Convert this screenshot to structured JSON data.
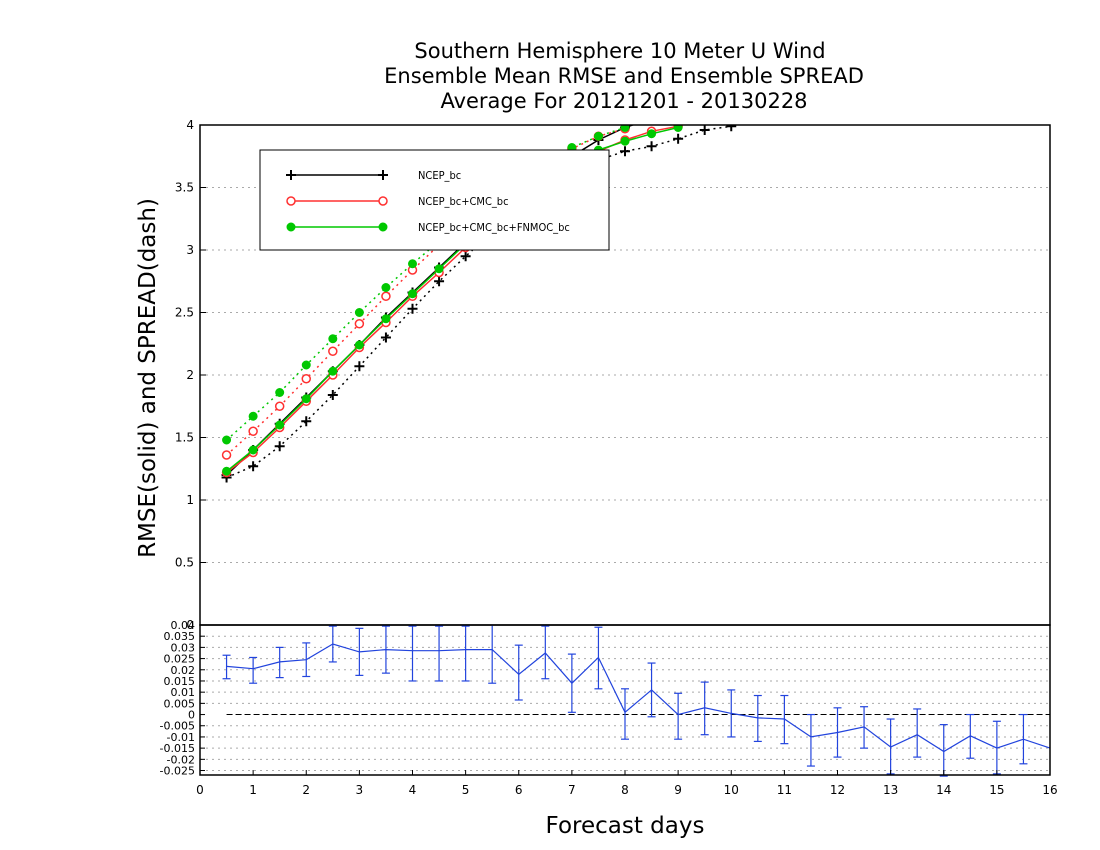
{
  "title_lines": [
    "Southern Hemisphere 10 Meter U Wind",
    "Ensemble Mean RMSE and Ensemble SPREAD",
    "Average For 20121201 - 20130228"
  ],
  "chart_data": [
    {
      "type": "line",
      "panel": "main",
      "ylabel": "RMSE(solid) and SPREAD(dash)",
      "ylim": [
        0,
        4
      ],
      "xlim": [
        0,
        16
      ],
      "yticks": [
        0,
        0.5,
        1,
        1.5,
        2,
        2.5,
        3,
        3.5,
        4
      ],
      "ytick_labels": [
        "0",
        "0.5",
        "1",
        "1.5",
        "2",
        "2.5",
        "3",
        "3.5",
        "4"
      ],
      "grid": true,
      "legend_position": "top-left",
      "series": [
        {
          "name": "NCEP_bc",
          "color": "#000000",
          "marker": "plus",
          "rmse": [
            [
              0.5,
              1.2
            ],
            [
              1,
              1.4
            ],
            [
              1.5,
              1.61
            ],
            [
              2,
              1.82
            ],
            [
              2.5,
              2.03
            ],
            [
              3,
              2.24
            ],
            [
              3.5,
              2.46
            ],
            [
              4,
              2.66
            ],
            [
              4.5,
              2.86
            ],
            [
              5,
              3.06
            ],
            [
              5.5,
              3.25
            ],
            [
              6,
              3.43
            ],
            [
              6.5,
              3.6
            ],
            [
              7,
              3.75
            ],
            [
              7.5,
              3.88
            ],
            [
              8,
              3.98
            ],
            [
              8.5,
              4.05
            ]
          ],
          "spread": [
            [
              0.5,
              1.18
            ],
            [
              1,
              1.27
            ],
            [
              1.5,
              1.43
            ],
            [
              2,
              1.63
            ],
            [
              2.5,
              1.84
            ],
            [
              3,
              2.07
            ],
            [
              3.5,
              2.3
            ],
            [
              4,
              2.53
            ],
            [
              4.5,
              2.75
            ],
            [
              5,
              2.95
            ],
            [
              5.5,
              3.14
            ],
            [
              6,
              3.31
            ],
            [
              6.5,
              3.47
            ],
            [
              7,
              3.6
            ],
            [
              7.5,
              3.72
            ],
            [
              8,
              3.79
            ],
            [
              8.5,
              3.83
            ],
            [
              9,
              3.89
            ],
            [
              9.5,
              3.96
            ],
            [
              10,
              3.99
            ]
          ]
        },
        {
          "name": "NCEP_bc+CMC_bc",
          "color": "#ff3030",
          "marker": "open-circle",
          "rmse": [
            [
              0.5,
              1.22
            ],
            [
              1,
              1.38
            ],
            [
              1.5,
              1.58
            ],
            [
              2,
              1.79
            ],
            [
              2.5,
              2.0
            ],
            [
              3,
              2.22
            ],
            [
              3.5,
              2.42
            ],
            [
              4,
              2.63
            ],
            [
              4.5,
              2.82
            ],
            [
              5,
              3.02
            ],
            [
              5.5,
              3.2
            ],
            [
              6,
              3.37
            ],
            [
              6.5,
              3.53
            ],
            [
              7,
              3.67
            ],
            [
              7.5,
              3.79
            ],
            [
              8,
              3.88
            ],
            [
              8.5,
              3.95
            ],
            [
              9,
              3.99
            ]
          ],
          "spread": [
            [
              0.5,
              1.36
            ],
            [
              1,
              1.55
            ],
            [
              1.5,
              1.75
            ],
            [
              2,
              1.97
            ],
            [
              2.5,
              2.19
            ],
            [
              3,
              2.41
            ],
            [
              3.5,
              2.63
            ],
            [
              4,
              2.84
            ],
            [
              4.5,
              3.04
            ],
            [
              5,
              3.23
            ],
            [
              5.5,
              3.41
            ],
            [
              6,
              3.57
            ],
            [
              6.5,
              3.71
            ],
            [
              7,
              3.81
            ],
            [
              7.5,
              3.91
            ],
            [
              8,
              3.97
            ]
          ]
        },
        {
          "name": "NCEP_bc+CMC_bc+FNMOC_bc",
          "color": "#00c800",
          "marker": "filled-circle",
          "rmse": [
            [
              0.5,
              1.23
            ],
            [
              1,
              1.4
            ],
            [
              1.5,
              1.6
            ],
            [
              2,
              1.81
            ],
            [
              2.5,
              2.03
            ],
            [
              3,
              2.24
            ],
            [
              3.5,
              2.45
            ],
            [
              4,
              2.65
            ],
            [
              4.5,
              2.85
            ],
            [
              5,
              3.05
            ],
            [
              5.5,
              3.23
            ],
            [
              6,
              3.4
            ],
            [
              6.5,
              3.55
            ],
            [
              7,
              3.69
            ],
            [
              7.5,
              3.8
            ],
            [
              8,
              3.87
            ],
            [
              8.5,
              3.93
            ],
            [
              9,
              3.98
            ]
          ],
          "spread": [
            [
              0.5,
              1.48
            ],
            [
              1,
              1.67
            ],
            [
              1.5,
              1.86
            ],
            [
              2,
              2.08
            ],
            [
              2.5,
              2.29
            ],
            [
              3,
              2.5
            ],
            [
              3.5,
              2.7
            ],
            [
              4,
              2.89
            ],
            [
              4.5,
              3.07
            ],
            [
              5,
              3.25
            ],
            [
              5.5,
              3.42
            ],
            [
              6,
              3.58
            ],
            [
              6.5,
              3.71
            ],
            [
              7,
              3.82
            ],
            [
              7.5,
              3.91
            ],
            [
              8,
              3.98
            ]
          ]
        }
      ]
    },
    {
      "type": "line",
      "panel": "difference",
      "xlabel": "Forecast days",
      "xlim": [
        0,
        16
      ],
      "ylim": [
        -0.027,
        0.04
      ],
      "xticks": [
        0,
        1,
        2,
        3,
        4,
        5,
        6,
        7,
        8,
        9,
        10,
        11,
        12,
        13,
        14,
        15,
        16
      ],
      "xtick_labels": [
        "0",
        "1",
        "2",
        "3",
        "4",
        "5",
        "6",
        "7",
        "8",
        "9",
        "10",
        "11",
        "12",
        "13",
        "14",
        "15",
        "16"
      ],
      "yticks": [
        0.04,
        0.035,
        0.03,
        0.025,
        0.02,
        0.015,
        0.01,
        0.005,
        0,
        -0.005,
        -0.01,
        -0.015,
        -0.02,
        -0.025
      ],
      "ytick_labels": [
        "0.04",
        "0.035",
        "0.03",
        "0.025",
        "0.02",
        "0.015",
        "0.01",
        "0.005",
        "0",
        "-0.005",
        "-0.01",
        "-0.015",
        "-0.02",
        "-0.025"
      ],
      "grid": true,
      "color": "#2244dd",
      "reference_line": 0,
      "points": [
        {
          "x": 0.5,
          "y": 0.0215,
          "lo": 0.016,
          "hi": 0.0265
        },
        {
          "x": 1,
          "y": 0.0205,
          "lo": 0.014,
          "hi": 0.0255
        },
        {
          "x": 1.5,
          "y": 0.0235,
          "lo": 0.0165,
          "hi": 0.03
        },
        {
          "x": 2,
          "y": 0.0245,
          "lo": 0.017,
          "hi": 0.032
        },
        {
          "x": 2.5,
          "y": 0.0315,
          "lo": 0.0235,
          "hi": 0.0395
        },
        {
          "x": 3,
          "y": 0.028,
          "lo": 0.0175,
          "hi": 0.0385
        },
        {
          "x": 3.5,
          "y": 0.029,
          "lo": 0.0185,
          "hi": 0.0395
        },
        {
          "x": 4,
          "y": 0.0285,
          "lo": 0.015,
          "hi": 0.0395
        },
        {
          "x": 4.5,
          "y": 0.0285,
          "lo": 0.015,
          "hi": 0.0395
        },
        {
          "x": 5,
          "y": 0.029,
          "lo": 0.015,
          "hi": 0.0395
        },
        {
          "x": 5.5,
          "y": 0.029,
          "lo": 0.014,
          "hi": 0.042
        },
        {
          "x": 6,
          "y": 0.018,
          "lo": 0.0065,
          "hi": 0.031
        },
        {
          "x": 6.5,
          "y": 0.0275,
          "lo": 0.016,
          "hi": 0.0395
        },
        {
          "x": 7,
          "y": 0.014,
          "lo": 0.001,
          "hi": 0.027
        },
        {
          "x": 7.5,
          "y": 0.0255,
          "lo": 0.0115,
          "hi": 0.039
        },
        {
          "x": 8,
          "y": 0.001,
          "lo": -0.011,
          "hi": 0.0115
        },
        {
          "x": 8.5,
          "y": 0.011,
          "lo": -0.001,
          "hi": 0.023
        },
        {
          "x": 9,
          "y": 0.0,
          "lo": -0.011,
          "hi": 0.0095
        },
        {
          "x": 9.5,
          "y": 0.003,
          "lo": -0.009,
          "hi": 0.0145
        },
        {
          "x": 10,
          "y": 0.0005,
          "lo": -0.01,
          "hi": 0.011
        },
        {
          "x": 10.5,
          "y": -0.0015,
          "lo": -0.012,
          "hi": 0.0085
        },
        {
          "x": 11,
          "y": -0.002,
          "lo": -0.013,
          "hi": 0.0085
        },
        {
          "x": 11.5,
          "y": -0.01,
          "lo": -0.023,
          "hi": 0.0
        },
        {
          "x": 12,
          "y": -0.008,
          "lo": -0.019,
          "hi": 0.003
        },
        {
          "x": 12.5,
          "y": -0.0055,
          "lo": -0.015,
          "hi": 0.0035
        },
        {
          "x": 13,
          "y": -0.0145,
          "lo": -0.0265,
          "hi": -0.002
        },
        {
          "x": 13.5,
          "y": -0.009,
          "lo": -0.019,
          "hi": 0.0025
        },
        {
          "x": 14,
          "y": -0.0165,
          "lo": -0.0275,
          "hi": -0.0045
        },
        {
          "x": 14.5,
          "y": -0.0095,
          "lo": -0.0195,
          "hi": 0.0
        },
        {
          "x": 15,
          "y": -0.015,
          "lo": -0.0265,
          "hi": -0.003
        },
        {
          "x": 15.5,
          "y": -0.011,
          "lo": -0.022,
          "hi": 0.0
        },
        {
          "x": 16,
          "y": -0.015
        }
      ]
    }
  ]
}
